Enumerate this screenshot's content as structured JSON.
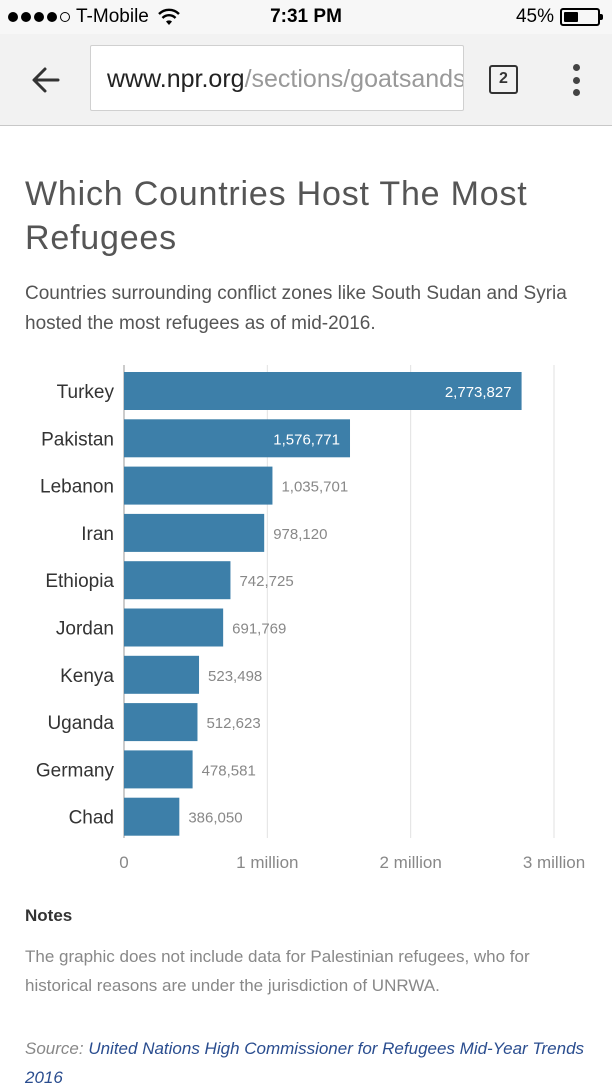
{
  "status_bar": {
    "carrier": "T-Mobile",
    "time": "7:31 PM",
    "battery": "45%",
    "battery_level": 0.45,
    "signal_bars_filled": 4,
    "signal_bars_total": 5
  },
  "toolbar": {
    "url_host": "www.npr.org",
    "url_path": "/sections/goatsandsoda",
    "tab_count": "2"
  },
  "article": {
    "title": "Which Countries Host The Most Refugees",
    "subtitle": "Countries surrounding conflict zones like South Sudan and Syria hosted the most refugees as of mid-2016.",
    "notes_heading": "Notes",
    "notes_text": "The graphic does not include data for Palestinian refugees, who for historical reasons are under the jurisdiction of UNRWA.",
    "source_label": "Source:",
    "source_link": "United Nations High Commissioner for Refugees Mid-Year Trends 2016"
  },
  "chart_data": {
    "type": "bar",
    "orientation": "horizontal",
    "categories": [
      "Turkey",
      "Pakistan",
      "Lebanon",
      "Iran",
      "Ethiopia",
      "Jordan",
      "Kenya",
      "Uganda",
      "Germany",
      "Chad"
    ],
    "values": [
      2773827,
      1576771,
      1035701,
      978120,
      742725,
      691769,
      523498,
      512623,
      478581,
      386050
    ],
    "value_labels": [
      "2,773,827",
      "1,576,771",
      "1,035,701",
      "978,120",
      "742,725",
      "691,769",
      "523,498",
      "512,623",
      "478,581",
      "386,050"
    ],
    "xlim": [
      0,
      3000000
    ],
    "x_ticks": [
      0,
      1000000,
      2000000,
      3000000
    ],
    "x_tick_labels": [
      "0",
      "1 million",
      "2 million",
      "3 million"
    ],
    "grid": true,
    "bar_color": "#3d7fa9",
    "label_inside_color": "#ffffff",
    "label_outside_color": "#888888"
  }
}
